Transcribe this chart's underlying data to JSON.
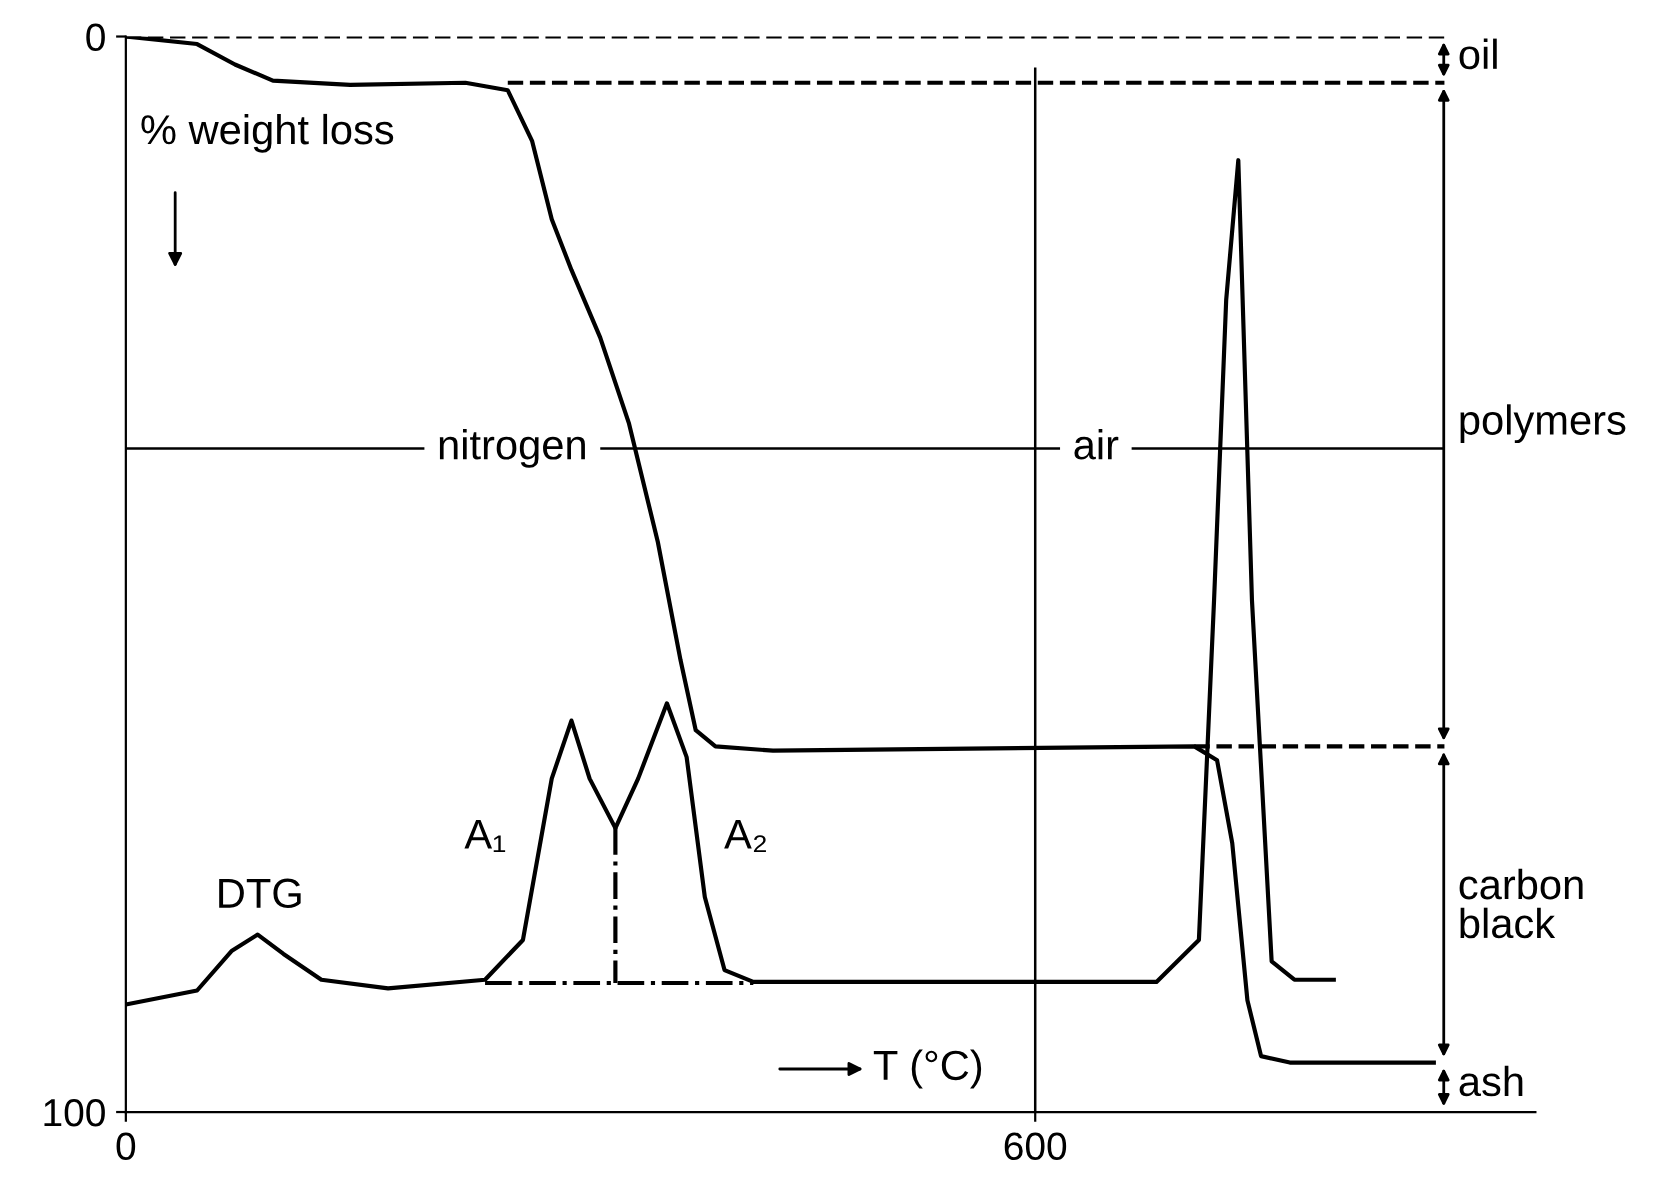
{
  "chart_data": {
    "type": "line",
    "xlim": [
      0,
      930
    ],
    "ylim": [
      100,
      0
    ],
    "xticks": [
      0,
      600
    ],
    "yticks": [
      0,
      100
    ],
    "grid": false,
    "legend": false,
    "marker": "none",
    "series": [
      {
        "color": "#000000",
        "line_style": "solid",
        "x": [
          0,
          47,
          72,
          97,
          148,
          224,
          252,
          268,
          281,
          294,
          313,
          332,
          351,
          366,
          376,
          389,
          427,
          705,
          720,
          730,
          740,
          749,
          768,
          863
        ],
        "values": [
          0,
          0.7,
          2.6,
          4.1,
          4.5,
          4.3,
          5,
          9.7,
          17,
          21.7,
          28,
          36,
          47,
          58,
          64.5,
          66,
          66.4,
          66,
          67.3,
          75,
          89.6,
          94.8,
          95.4,
          95.4
        ]
      },
      {
        "color": "#000000",
        "line_style": "solid",
        "x": [
          0,
          47,
          70,
          87,
          104,
          129,
          173,
          237,
          262,
          281,
          294,
          306,
          323,
          338,
          357,
          370,
          382,
          395,
          414,
          680,
          708,
          718,
          726,
          734,
          743,
          756,
          771,
          797
        ],
        "values": [
          90,
          88.7,
          85,
          83.5,
          85.3,
          87.7,
          88.5,
          87.7,
          84,
          69,
          63.6,
          69,
          73.6,
          69,
          62,
          67,
          80,
          86.8,
          87.9,
          87.9,
          84,
          52.4,
          24.5,
          11.5,
          52.4,
          86,
          87.7,
          87.7
        ]
      },
      {
        "color": "#000000",
        "line_style": "dashed",
        "x": [
          0,
          870
        ],
        "values": [
          0,
          0
        ]
      },
      {
        "color": "#000000",
        "line_style": "dashed",
        "x": [
          252,
          870
        ],
        "values": [
          4.3,
          4.3
        ]
      },
      {
        "color": "#000000",
        "line_style": "dashed",
        "x": [
          705,
          870
        ],
        "values": [
          66,
          66
        ]
      },
      {
        "color": "#000000",
        "line_style": "dotted",
        "x": [
          237,
          414
        ],
        "values": [
          88,
          88
        ]
      },
      {
        "color": "#000000",
        "line_style": "dotted",
        "x": [
          323,
          323
        ],
        "values": [
          73.6,
          88
        ]
      }
    ],
    "ref_lines": [
      {
        "axis": "x",
        "value": 600,
        "color": "#000000",
        "line_style": "solid"
      },
      {
        "axis": "y",
        "value": 38.3,
        "color": "#000000",
        "line_style": "solid"
      }
    ],
    "annotations": [
      "% weight loss",
      {
        "text": "nitrogen",
        "x": 255,
        "y": 38.3
      },
      {
        "text": "air",
        "x": 640,
        "y": 38.3
      },
      "DTG",
      "A₁",
      "A₂",
      "T (°C)",
      "oil",
      "polymers",
      "carbon black",
      "ash"
    ]
  }
}
